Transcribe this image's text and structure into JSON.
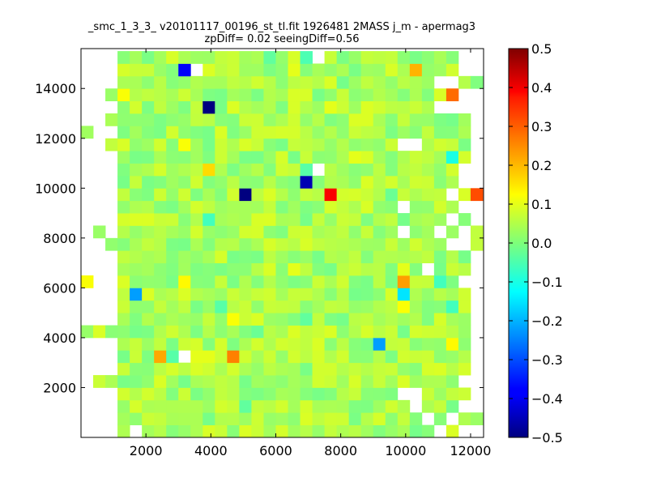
{
  "chart_data": {
    "type": "heatmap",
    "title_line1": "_smc_1_3_3_ v20101117_00196_st_tl.fit 1926481 2MASS j_m - apermag3",
    "title_line2": "zpDiff= 0.02 seeingDiff=0.56",
    "xlabel": "",
    "ylabel": "",
    "xlim": [
      0,
      12400
    ],
    "ylim": [
      0,
      15600
    ],
    "x_ticks": [
      2000,
      4000,
      6000,
      8000,
      10000,
      12000
    ],
    "y_ticks": [
      2000,
      4000,
      6000,
      8000,
      10000,
      12000,
      14000
    ],
    "x_tick_labels": [
      "2000",
      "4000",
      "6000",
      "8000",
      "10000",
      "12000"
    ],
    "y_tick_labels": [
      "2000",
      "4000",
      "6000",
      "8000",
      "10000",
      "12000",
      "14000"
    ],
    "grid": false,
    "colormap": "jet",
    "color_range": [
      -0.5,
      0.5
    ],
    "colorbar_ticks": [
      0.5,
      0.4,
      0.3,
      0.2,
      0.1,
      0.0,
      -0.1,
      -0.2,
      -0.3,
      -0.4,
      -0.5
    ],
    "colorbar_tick_labels": [
      "0.5",
      "0.4",
      "0.3",
      "0.2",
      "0.1",
      "0.0",
      "−0.1",
      "−0.2",
      "−0.3",
      "−0.4",
      "−0.5"
    ],
    "bin_size": [
      375,
      500
    ],
    "grid_origin": [
      0,
      0
    ],
    "n_cols": 33,
    "n_rows": 31,
    "base_value": 0.04,
    "special_cells": [
      {
        "x": 3000,
        "y": 14500,
        "value": -0.38
      },
      {
        "x": 3750,
        "y": 13000,
        "value": -0.5
      },
      {
        "x": 4875,
        "y": 9500,
        "value": -0.5
      },
      {
        "x": 6750,
        "y": 10000,
        "value": -0.45
      },
      {
        "x": 7625,
        "y": 9500,
        "value": 0.38
      },
      {
        "x": 12125,
        "y": 9500,
        "value": 0.3
      },
      {
        "x": 11125,
        "y": 13500,
        "value": 0.27
      },
      {
        "x": 10125,
        "y": 14500,
        "value": 0.2
      },
      {
        "x": 3625,
        "y": 10500,
        "value": 0.16
      },
      {
        "x": 2250,
        "y": 2750,
        "value": 0.21
      },
      {
        "x": 4500,
        "y": 2750,
        "value": 0.25
      },
      {
        "x": 9625,
        "y": 6000,
        "value": 0.22
      },
      {
        "x": 1625,
        "y": 5500,
        "value": -0.22
      },
      {
        "x": 4375,
        "y": 4500,
        "value": -0.25
      },
      {
        "x": 9125,
        "y": 3500,
        "value": -0.22
      },
      {
        "x": 9875,
        "y": 5500,
        "value": -0.15
      },
      {
        "x": 11375,
        "y": 11000,
        "value": -0.1
      },
      {
        "x": 11875,
        "y": 7000,
        "value": -0.1
      },
      {
        "x": 10875,
        "y": 6000,
        "value": -0.06
      },
      {
        "x": 11375,
        "y": 5000,
        "value": -0.06
      },
      {
        "x": 3625,
        "y": 8500,
        "value": -0.06
      },
      {
        "x": 6625,
        "y": 10500,
        "value": -0.04
      },
      {
        "x": 4000,
        "y": 5000,
        "value": -0.04
      },
      {
        "x": 2625,
        "y": 3000,
        "value": -0.04
      },
      {
        "x": 5375,
        "y": 4000,
        "value": -0.02
      },
      {
        "x": 6875,
        "y": 4500,
        "value": -0.03
      },
      {
        "x": 9375,
        "y": 9500,
        "value": -0.02
      },
      {
        "x": 5750,
        "y": 15000,
        "value": -0.03
      },
      {
        "x": 6875,
        "y": 15000,
        "value": -0.05
      },
      {
        "x": 8125,
        "y": 15500,
        "value": -0.08
      },
      {
        "x": 11875,
        "y": 3500,
        "value": -0.06
      },
      {
        "x": 4875,
        "y": 750,
        "value": -0.03
      },
      {
        "x": 7625,
        "y": 9500,
        "value": 0.38
      },
      {
        "x": 2875,
        "y": 6000,
        "value": 0.13
      },
      {
        "x": 2875,
        "y": 11500,
        "value": 0.12
      },
      {
        "x": 6375,
        "y": 14500,
        "value": 0.1
      },
      {
        "x": 3375,
        "y": 14500,
        "value": 0.1
      },
      {
        "x": 1000,
        "y": 13500,
        "value": 0.12
      },
      {
        "x": 11000,
        "y": 15500,
        "value": 0.12
      },
      {
        "x": 12125,
        "y": 750,
        "value": 0.1
      },
      {
        "x": 9625,
        "y": 5000,
        "value": 0.12
      },
      {
        "x": 9875,
        "y": 6500,
        "value": 0.1
      },
      {
        "x": 0,
        "y": 6000,
        "value": 0.12
      },
      {
        "x": 6375,
        "y": 6500,
        "value": 0.1
      },
      {
        "x": 8125,
        "y": 11000,
        "value": 0.1
      },
      {
        "x": 7375,
        "y": 13000,
        "value": 0.1
      },
      {
        "x": 8625,
        "y": 12500,
        "value": 0.09
      },
      {
        "x": 2625,
        "y": 12000,
        "value": 0.08
      },
      {
        "x": 6375,
        "y": 3000,
        "value": 0.08
      },
      {
        "x": 5875,
        "y": 3500,
        "value": 0.08
      },
      {
        "x": 7375,
        "y": 2500,
        "value": 0.08
      },
      {
        "x": 3375,
        "y": 3000,
        "value": 0.1
      },
      {
        "x": 3750,
        "y": 2750,
        "value": 0.1
      },
      {
        "x": 4625,
        "y": 4500,
        "value": 0.12
      },
      {
        "x": 11125,
        "y": 3500,
        "value": 0.13
      },
      {
        "x": 6125,
        "y": 1000,
        "value": 0.08
      },
      {
        "x": 5375,
        "y": 11500,
        "value": 0.07
      }
    ],
    "empty_cells": [
      [
        0,
        15500
      ],
      [
        375,
        15500
      ],
      [
        750,
        15500
      ],
      [
        1125,
        15500
      ],
      [
        10500,
        15500
      ],
      [
        10875,
        15500
      ],
      [
        11625,
        15500
      ],
      [
        12000,
        15500
      ],
      [
        0,
        15000
      ],
      [
        375,
        15000
      ],
      [
        750,
        15000
      ],
      [
        7125,
        15000
      ],
      [
        11625,
        15000
      ],
      [
        12000,
        15000
      ],
      [
        0,
        14500
      ],
      [
        375,
        14500
      ],
      [
        750,
        14500
      ],
      [
        3375,
        14500
      ],
      [
        11625,
        14500
      ],
      [
        12000,
        14500
      ],
      [
        0,
        14000
      ],
      [
        375,
        14000
      ],
      [
        750,
        14000
      ],
      [
        10875,
        14000
      ],
      [
        11250,
        14000
      ],
      [
        0,
        13500
      ],
      [
        375,
        13500
      ],
      [
        11625,
        13500
      ],
      [
        12000,
        13500
      ],
      [
        0,
        13000
      ],
      [
        375,
        13000
      ],
      [
        750,
        13000
      ],
      [
        10875,
        13000
      ],
      [
        11250,
        13000
      ],
      [
        11625,
        13000
      ],
      [
        12000,
        13000
      ],
      [
        0,
        12500
      ],
      [
        375,
        12500
      ],
      [
        7375,
        12500
      ],
      [
        7750,
        12500
      ],
      [
        8875,
        12500
      ],
      [
        12000,
        12500
      ],
      [
        375,
        12000
      ],
      [
        750,
        12000
      ],
      [
        12000,
        12000
      ],
      [
        0,
        11500
      ],
      [
        375,
        11500
      ],
      [
        6625,
        11500
      ],
      [
        9750,
        11500
      ],
      [
        10125,
        11500
      ],
      [
        12000,
        11500
      ],
      [
        0,
        11000
      ],
      [
        375,
        11000
      ],
      [
        750,
        11000
      ],
      [
        12000,
        11000
      ],
      [
        0,
        10500
      ],
      [
        375,
        10500
      ],
      [
        750,
        10500
      ],
      [
        7125,
        10500
      ],
      [
        11625,
        10500
      ],
      [
        12000,
        10500
      ],
      [
        0,
        10000
      ],
      [
        375,
        10000
      ],
      [
        750,
        10000
      ],
      [
        11625,
        10000
      ],
      [
        12000,
        10000
      ],
      [
        0,
        9500
      ],
      [
        375,
        9500
      ],
      [
        750,
        9500
      ],
      [
        8875,
        9500
      ],
      [
        11250,
        9500
      ],
      [
        0,
        9000
      ],
      [
        375,
        9000
      ],
      [
        750,
        9000
      ],
      [
        9750,
        9000
      ],
      [
        11625,
        9000
      ],
      [
        12000,
        9000
      ],
      [
        0,
        8500
      ],
      [
        375,
        8500
      ],
      [
        750,
        8500
      ],
      [
        11250,
        8500
      ],
      [
        12000,
        8500
      ],
      [
        0,
        8000
      ],
      [
        750,
        8000
      ],
      [
        9750,
        8000
      ],
      [
        10875,
        8000
      ],
      [
        11625,
        8000
      ],
      [
        0,
        7500
      ],
      [
        375,
        7500
      ],
      [
        11250,
        7500
      ],
      [
        11625,
        7500
      ],
      [
        0,
        7000
      ],
      [
        375,
        7000
      ],
      [
        750,
        7000
      ],
      [
        12000,
        7000
      ],
      [
        0,
        6500
      ],
      [
        375,
        6500
      ],
      [
        750,
        6500
      ],
      [
        10500,
        6500
      ],
      [
        12000,
        6500
      ],
      [
        375,
        6000
      ],
      [
        750,
        6000
      ],
      [
        11625,
        6000
      ],
      [
        12000,
        6000
      ],
      [
        0,
        5500
      ],
      [
        375,
        5500
      ],
      [
        750,
        5500
      ],
      [
        12000,
        5500
      ],
      [
        0,
        5000
      ],
      [
        375,
        5000
      ],
      [
        750,
        5000
      ],
      [
        12000,
        5000
      ],
      [
        0,
        4500
      ],
      [
        375,
        4500
      ],
      [
        750,
        4500
      ],
      [
        9125,
        4500
      ],
      [
        12000,
        4500
      ],
      [
        12000,
        4000
      ],
      [
        0,
        3500
      ],
      [
        375,
        3500
      ],
      [
        750,
        3500
      ],
      [
        12000,
        3500
      ],
      [
        0,
        3000
      ],
      [
        375,
        3000
      ],
      [
        750,
        3000
      ],
      [
        2000,
        3000
      ],
      [
        3000,
        3000
      ],
      [
        12000,
        3000
      ],
      [
        0,
        2500
      ],
      [
        375,
        2500
      ],
      [
        750,
        2500
      ],
      [
        12000,
        2500
      ],
      [
        0,
        2000
      ],
      [
        11625,
        2000
      ],
      [
        12000,
        2000
      ],
      [
        0,
        1500
      ],
      [
        375,
        1500
      ],
      [
        750,
        1500
      ],
      [
        9750,
        1500
      ],
      [
        10125,
        1500
      ],
      [
        12000,
        1500
      ],
      [
        0,
        1000
      ],
      [
        375,
        1000
      ],
      [
        750,
        1000
      ],
      [
        10125,
        1000
      ],
      [
        11625,
        1000
      ],
      [
        12000,
        1000
      ],
      [
        0,
        500
      ],
      [
        375,
        500
      ],
      [
        750,
        500
      ],
      [
        5375,
        500
      ],
      [
        6125,
        500
      ],
      [
        10500,
        500
      ],
      [
        11250,
        500
      ],
      [
        0,
        0
      ],
      [
        375,
        0
      ],
      [
        750,
        0
      ],
      [
        1500,
        0
      ],
      [
        10875,
        0
      ],
      [
        11625,
        0
      ],
      [
        12000,
        0
      ]
    ]
  }
}
